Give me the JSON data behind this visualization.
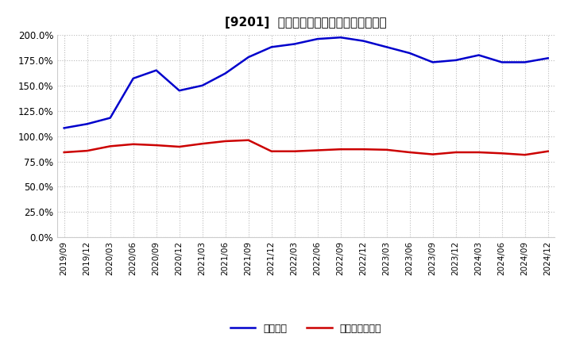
{
  "title": "[9201]  固定比率、固定長期適合率の推移",
  "x_labels": [
    "2019/09",
    "2019/12",
    "2020/03",
    "2020/06",
    "2020/09",
    "2020/12",
    "2021/03",
    "2021/06",
    "2021/09",
    "2021/12",
    "2022/03",
    "2022/06",
    "2022/09",
    "2022/12",
    "2023/03",
    "2023/06",
    "2023/09",
    "2023/12",
    "2024/03",
    "2024/06",
    "2024/09",
    "2024/12"
  ],
  "fixed_ratio": [
    108.0,
    112.0,
    118.0,
    157.0,
    165.0,
    145.0,
    150.0,
    162.0,
    178.0,
    188.0,
    191.0,
    196.0,
    197.5,
    194.0,
    188.0,
    182.0,
    173.0,
    175.0,
    180.0,
    173.0,
    173.0,
    177.0
  ],
  "fixed_long_ratio": [
    84.0,
    85.5,
    90.0,
    92.0,
    91.0,
    89.5,
    92.5,
    95.0,
    96.0,
    85.0,
    85.0,
    86.0,
    87.0,
    87.0,
    86.5,
    84.0,
    82.0,
    84.0,
    84.0,
    83.0,
    81.5,
    85.0
  ],
  "line1_color": "#0000cc",
  "line2_color": "#cc0000",
  "bg_color": "#ffffff",
  "plot_bg_color": "#ffffff",
  "grid_color": "#bbbbbb",
  "legend1": "固定比率",
  "legend2": "固定長期適合率",
  "ylim": [
    0.0,
    200.0
  ],
  "yticks": [
    0.0,
    25.0,
    50.0,
    75.0,
    100.0,
    125.0,
    150.0,
    175.0,
    200.0
  ]
}
